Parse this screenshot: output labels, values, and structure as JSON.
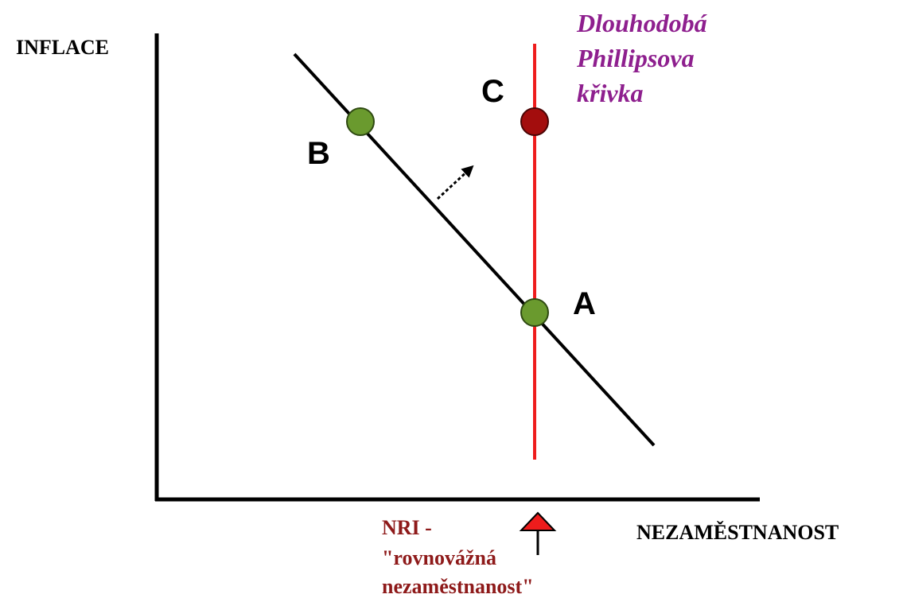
{
  "axes": {
    "y_label": "INFLACE",
    "x_label": "NEZAMĚSTNANOST"
  },
  "points": [
    {
      "label": "B"
    },
    {
      "label": "C"
    },
    {
      "label": "A"
    }
  ],
  "long_run_curve": {
    "label_lines": [
      "Dlouhodobá",
      "Phillipsova",
      "křivka"
    ]
  },
  "nri": {
    "label_lines": [
      "NRI -",
      "\"rovnovážná",
      "nezaměstnanost\""
    ]
  }
}
